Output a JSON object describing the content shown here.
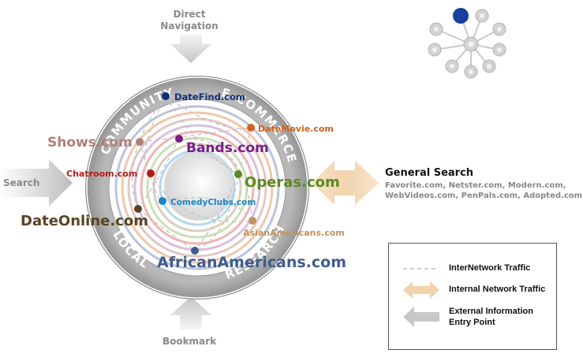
{
  "entry_points": {
    "direct": [
      "Direct",
      "Navigation"
    ],
    "search": "Search",
    "bookmark": "Bookmark"
  },
  "ring_words": {
    "community": "COMMUNITY",
    "ecommerce": "E-COMMERCE",
    "local": "LOCAL",
    "research": "RESEARCH"
  },
  "sites": [
    {
      "label": "DateFind.com",
      "color": "#0e2f7a"
    },
    {
      "label": "DateMovie.com",
      "color": "#d4621f"
    },
    {
      "label": "Shows.com",
      "color": "#b07e7a"
    },
    {
      "label": "Bands.com",
      "color": "#7b1d86"
    },
    {
      "label": "Chatroom.com",
      "color": "#b51a1a"
    },
    {
      "label": "Operas.com",
      "color": "#5b8a24"
    },
    {
      "label": "ComedyClubs.com",
      "color": "#1a86c4"
    },
    {
      "label": "DateOnline.com",
      "color": "#5a4422"
    },
    {
      "label": "AsianAmericans.com",
      "color": "#c2935c"
    },
    {
      "label": "AfricanAmericans.com",
      "color": "#3f5c8d"
    }
  ],
  "general_search": {
    "title": "General Search",
    "lines": [
      "Favorite.com, Netster.com, Modern.com,",
      "WebVideos.com, PenPals.com, Adopted.com"
    ]
  },
  "legend": {
    "internetwork": "InterNetwork Traffic",
    "internal": "Internal Network Traffic",
    "external": [
      "External Information",
      "Entry Point"
    ]
  },
  "colors": {
    "ring_grey": "#a5a5a5",
    "inner_disk": "#e0e0e0",
    "hub_blue": "#1540a0",
    "arrow_grey": "#cfcfcf",
    "arrow_peach": "#f2ddc0"
  }
}
